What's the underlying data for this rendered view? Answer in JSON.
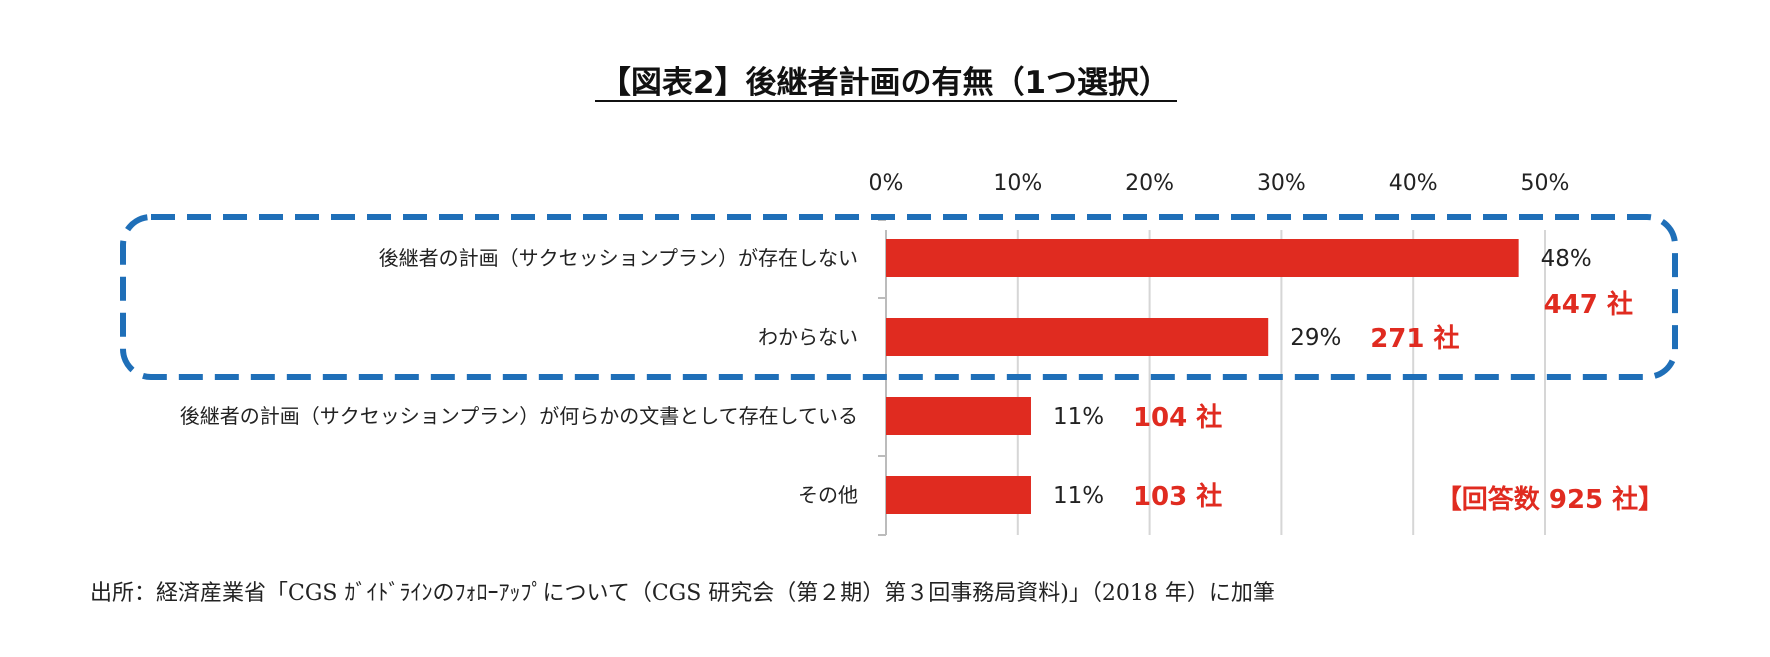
{
  "chart_data": {
    "type": "bar",
    "orientation": "horizontal",
    "title": "【図表2】後継者計画の有無（1つ選択）",
    "xlim": [
      0,
      50
    ],
    "x_ticks": [
      "0%",
      "10%",
      "20%",
      "30%",
      "40%",
      "50%"
    ],
    "x_tick_values": [
      0,
      10,
      20,
      30,
      40,
      50
    ],
    "grid": true,
    "categories": [
      "後継者の計画（サクセッションプラン）が存在しない",
      "わからない",
      "後継者の計画（サクセッションプラン）が何らかの文書として存在している",
      "その他"
    ],
    "values": [
      48,
      29,
      11,
      11
    ],
    "value_labels": [
      "48%",
      "29%",
      "11%",
      "11%"
    ],
    "count_labels": [
      "447 社",
      "271 社",
      "104 社",
      "103 社"
    ],
    "bar_color": "#e02b20",
    "highlight_color": "#1f6fb8",
    "total_label": "【回答数 925 社】",
    "source": "出所：経済産業省「CGS ｶﾞｲﾄﾞﾗｲﾝのﾌｫﾛｰｱｯﾌﾟについて（CGS 研究会（第２期）第３回事務局資料)」（2018 年）に加筆"
  }
}
